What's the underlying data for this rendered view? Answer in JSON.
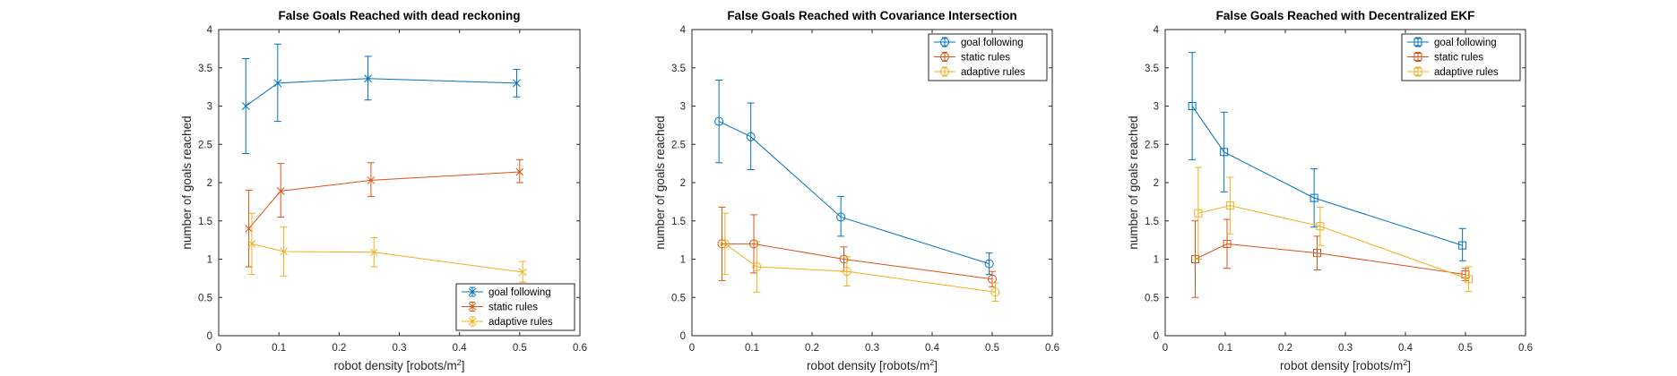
{
  "chart_data": [
    {
      "type": "line",
      "title": "False Goals Reached with dead reckoning",
      "xlabel": "robot density [robots/m",
      "xlabel_sup": "2",
      "xlabel_end": "]",
      "ylabel": "number of goals reached",
      "xlim": [
        0,
        0.6
      ],
      "ylim": [
        0,
        4
      ],
      "xticks": [
        0,
        0.1,
        0.2,
        0.3,
        0.4,
        0.5,
        0.6
      ],
      "xtick_labels": [
        "0",
        "0.1",
        "0.2",
        "0.3",
        "0.4",
        "0.5",
        "0.6"
      ],
      "yticks": [
        0,
        0.5,
        1,
        1.5,
        2,
        2.5,
        3,
        3.5,
        4
      ],
      "ytick_labels": [
        "0",
        "0.5",
        "1",
        "1.5",
        "2",
        "2.5",
        "3",
        "3.5",
        "4"
      ],
      "legend_position": "bottom-right",
      "grid": false,
      "series": [
        {
          "name": "goal following",
          "color": "#0072BD",
          "marker": "x",
          "x": [
            0.045,
            0.098,
            0.248,
            0.495
          ],
          "y": [
            3.0,
            3.3,
            3.36,
            3.3
          ],
          "err_low": [
            2.38,
            2.8,
            3.08,
            3.12
          ],
          "err_high": [
            3.62,
            3.81,
            3.65,
            3.48
          ]
        },
        {
          "name": "static rules",
          "color": "#D95319",
          "marker": "x",
          "x": [
            0.05,
            0.103,
            0.253,
            0.5
          ],
          "y": [
            1.4,
            1.89,
            2.03,
            2.14
          ],
          "err_low": [
            0.9,
            1.55,
            1.82,
            2.0
          ],
          "err_high": [
            1.9,
            2.25,
            2.26,
            2.3
          ]
        },
        {
          "name": "adaptive rules",
          "color": "#EDB120",
          "marker": "x",
          "x": [
            0.055,
            0.108,
            0.258,
            0.505
          ],
          "y": [
            1.2,
            1.1,
            1.09,
            0.83
          ],
          "err_low": [
            0.8,
            0.78,
            0.9,
            0.7
          ],
          "err_high": [
            1.6,
            1.42,
            1.28,
            0.97
          ]
        }
      ]
    },
    {
      "type": "line",
      "title": "False Goals Reached with Covariance Intersection",
      "xlabel": "robot density [robots/m",
      "xlabel_sup": "2",
      "xlabel_end": "]",
      "ylabel": "number of goals reached",
      "xlim": [
        0,
        0.6
      ],
      "ylim": [
        0,
        4
      ],
      "xticks": [
        0,
        0.1,
        0.2,
        0.3,
        0.4,
        0.5,
        0.6
      ],
      "xtick_labels": [
        "0",
        "0.1",
        "0.2",
        "0.3",
        "0.4",
        "0.5",
        "0.6"
      ],
      "yticks": [
        0,
        0.5,
        1,
        1.5,
        2,
        2.5,
        3,
        3.5,
        4
      ],
      "ytick_labels": [
        "0",
        "0.5",
        "1",
        "1.5",
        "2",
        "2.5",
        "3",
        "3.5",
        "4"
      ],
      "legend_position": "top-right",
      "grid": false,
      "series": [
        {
          "name": "goal following",
          "color": "#0072BD",
          "marker": "o",
          "x": [
            0.045,
            0.098,
            0.248,
            0.495
          ],
          "y": [
            2.8,
            2.6,
            1.55,
            0.94
          ],
          "err_low": [
            2.26,
            2.17,
            1.3,
            0.8
          ],
          "err_high": [
            3.34,
            3.04,
            1.82,
            1.08
          ]
        },
        {
          "name": "static rules",
          "color": "#D95319",
          "marker": "o",
          "x": [
            0.05,
            0.103,
            0.253,
            0.5
          ],
          "y": [
            1.2,
            1.2,
            1.0,
            0.74
          ],
          "err_low": [
            0.72,
            0.82,
            0.84,
            0.64
          ],
          "err_high": [
            1.68,
            1.58,
            1.16,
            0.84
          ]
        },
        {
          "name": "adaptive rules",
          "color": "#EDB120",
          "marker": "o",
          "x": [
            0.055,
            0.108,
            0.258,
            0.505
          ],
          "y": [
            1.2,
            0.9,
            0.84,
            0.57
          ],
          "err_low": [
            0.8,
            0.57,
            0.65,
            0.45
          ],
          "err_high": [
            1.6,
            1.23,
            1.03,
            0.69
          ]
        }
      ]
    },
    {
      "type": "line",
      "title": "False Goals Reached with Decentralized EKF",
      "xlabel": "robot density [robots/m",
      "xlabel_sup": "2",
      "xlabel_end": "]",
      "ylabel": "number of goals reached",
      "xlim": [
        0,
        0.6
      ],
      "ylim": [
        0,
        4
      ],
      "xticks": [
        0,
        0.1,
        0.2,
        0.3,
        0.4,
        0.5,
        0.6
      ],
      "xtick_labels": [
        "0",
        "0.1",
        "0.2",
        "0.3",
        "0.4",
        "0.5",
        "0.6"
      ],
      "yticks": [
        0,
        0.5,
        1,
        1.5,
        2,
        2.5,
        3,
        3.5,
        4
      ],
      "ytick_labels": [
        "0",
        "0.5",
        "1",
        "1.5",
        "2",
        "2.5",
        "3",
        "3.5",
        "4"
      ],
      "legend_position": "top-right",
      "grid": false,
      "series": [
        {
          "name": "goal following",
          "color": "#0072BD",
          "marker": "square",
          "x": [
            0.045,
            0.098,
            0.248,
            0.495
          ],
          "y": [
            3.0,
            2.4,
            1.8,
            1.18
          ],
          "err_low": [
            2.3,
            1.88,
            1.42,
            0.98
          ],
          "err_high": [
            3.7,
            2.92,
            2.18,
            1.4
          ]
        },
        {
          "name": "static rules",
          "color": "#D95319",
          "marker": "square",
          "x": [
            0.05,
            0.103,
            0.253,
            0.5
          ],
          "y": [
            1.0,
            1.2,
            1.08,
            0.8
          ],
          "err_low": [
            0.5,
            0.88,
            0.86,
            0.72
          ],
          "err_high": [
            1.5,
            1.52,
            1.3,
            0.88
          ]
        },
        {
          "name": "adaptive rules",
          "color": "#EDB120",
          "marker": "square",
          "x": [
            0.055,
            0.108,
            0.258,
            0.505
          ],
          "y": [
            1.6,
            1.7,
            1.43,
            0.74
          ],
          "err_low": [
            1.0,
            1.33,
            1.18,
            0.58
          ],
          "err_high": [
            2.2,
            2.07,
            1.68,
            0.9
          ]
        }
      ]
    }
  ]
}
